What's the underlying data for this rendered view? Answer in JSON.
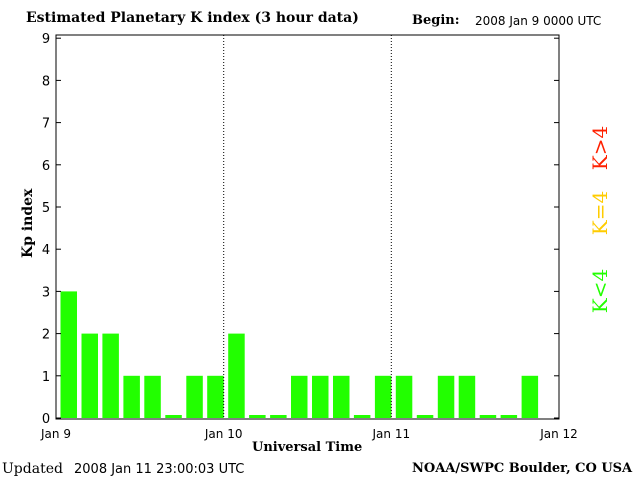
{
  "header": {
    "title": "Estimated Planetary K index (3 hour data)",
    "begin_label": "Begin:",
    "begin_value": "2008 Jan 9 0000 UTC"
  },
  "footer": {
    "updated_label": "Updated",
    "updated_value": "2008 Jan 11 23:00:03 UTC",
    "credit": "NOAA/SWPC Boulder, CO USA"
  },
  "legend": {
    "high": "K>4",
    "mid": "K=4",
    "low": "K<4"
  },
  "colors": {
    "bar": "#22ff00",
    "legend_high": "#ff2000",
    "legend_mid": "#ffcc00",
    "legend_low": "#22ff00"
  },
  "chart_data": {
    "type": "bar",
    "title": "Estimated Planetary K index (3 hour data)",
    "xlabel": "Universal Time",
    "ylabel": "Kp index",
    "ylim": [
      0,
      9
    ],
    "yticks": [
      "0",
      "1",
      "2",
      "3",
      "4",
      "5",
      "6",
      "7",
      "8",
      "9"
    ],
    "xticks": [
      "Jan 9",
      "Jan 10",
      "Jan 11",
      "Jan 12"
    ],
    "day_dividers": "dotted",
    "values": [
      3,
      2,
      2,
      1,
      1,
      0,
      1,
      1,
      2,
      0,
      0,
      1,
      1,
      1,
      0,
      1,
      1,
      0,
      1,
      1,
      0,
      0,
      1
    ]
  }
}
